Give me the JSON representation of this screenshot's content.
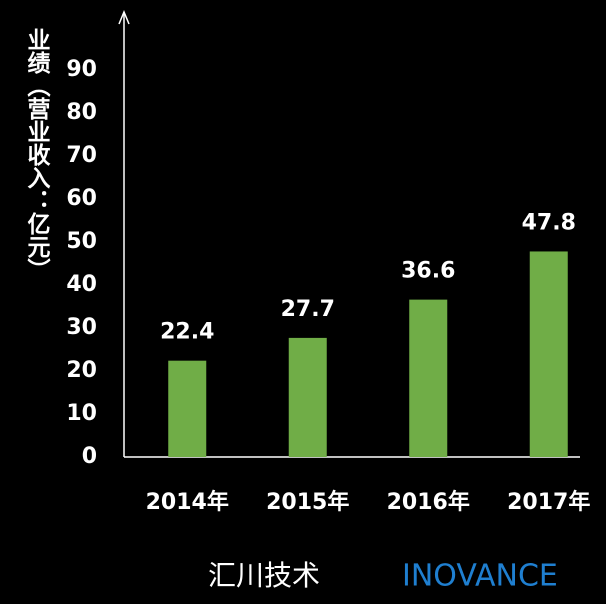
{
  "chart_data": {
    "type": "bar",
    "y_label": "业绩（营业收入：亿元）",
    "categories": [
      "2014年",
      "2015年",
      "2016年",
      "2017年"
    ],
    "values": [
      22.4,
      27.7,
      36.6,
      47.8
    ],
    "color": "#70ad47",
    "ylim": [
      0,
      100
    ],
    "yticks": [
      0,
      10,
      20,
      30,
      40,
      50,
      60,
      70,
      80,
      90
    ],
    "grid": false
  },
  "footer": {
    "brand_cn": "汇川技术",
    "brand_en": "INOVANCE",
    "brand_en_color": "#1f7fd0"
  }
}
